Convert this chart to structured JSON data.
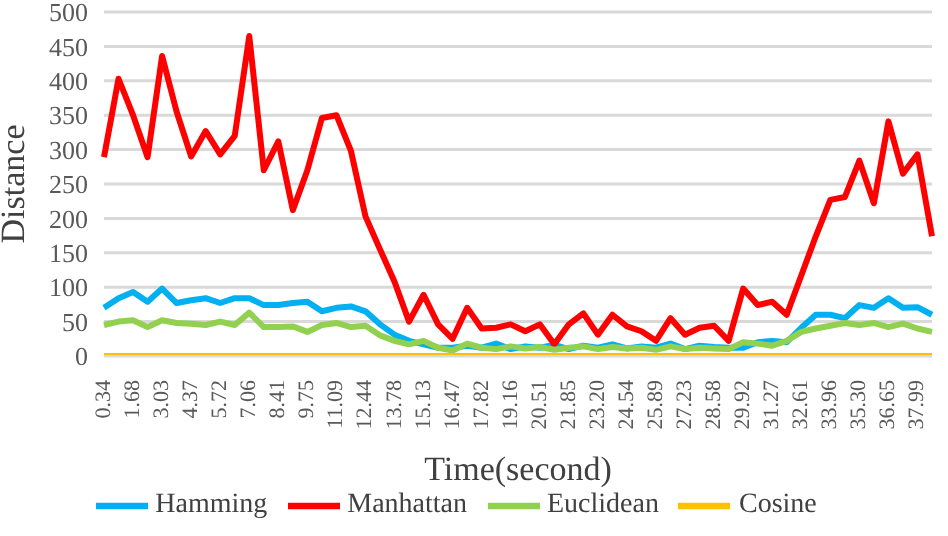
{
  "chart_data": {
    "type": "line",
    "xlabel": "Time(second)",
    "ylabel": "Distance",
    "categories": [
      "0.34",
      null,
      "1.68",
      null,
      "3.03",
      null,
      "4.37",
      null,
      "5.72",
      null,
      "7.06",
      null,
      "8.41",
      null,
      "9.75",
      null,
      "11.09",
      null,
      "12.44",
      null,
      "13.78",
      null,
      "15.13",
      null,
      "16.47",
      null,
      "17.82",
      null,
      "19.16",
      null,
      "20.51",
      null,
      "21.85",
      null,
      "23.20",
      null,
      "24.54",
      null,
      "25.89",
      null,
      "27.23",
      null,
      "28.58",
      null,
      "29.92",
      null,
      "31.27",
      null,
      "32.61",
      null,
      "33.96",
      null,
      "35.30",
      null,
      "36.65",
      null,
      "37.99",
      null
    ],
    "series": [
      {
        "name": "Hamming",
        "color": "#00b0f0",
        "values": [
          70,
          84,
          93,
          79,
          98,
          77,
          81,
          84,
          77,
          84,
          84,
          74,
          74,
          77,
          79,
          65,
          70,
          72,
          65,
          46,
          31,
          22,
          17,
          12,
          12,
          15,
          12,
          18,
          10,
          14,
          12,
          16,
          10,
          15,
          12,
          17,
          11,
          14,
          12,
          18,
          10,
          15,
          13,
          12,
          12,
          20,
          22,
          20,
          41,
          60,
          60,
          55,
          74,
          70,
          84,
          70,
          71,
          60
        ]
      },
      {
        "name": "Manhattan",
        "color": "#ff0000",
        "values": [
          289,
          403,
          350,
          289,
          436,
          355,
          290,
          327,
          293,
          320,
          465,
          270,
          312,
          212,
          270,
          346,
          350,
          298,
          203,
          155,
          108,
          50,
          89,
          46,
          25,
          70,
          40,
          41,
          46,
          36,
          46,
          17,
          46,
          62,
          31,
          60,
          43,
          36,
          22,
          55,
          31,
          41,
          44,
          22,
          98,
          74,
          79,
          60,
          117,
          174,
          227,
          231,
          284,
          222,
          341,
          265,
          293,
          174
        ]
      },
      {
        "name": "Euclidean",
        "color": "#92d050",
        "values": [
          45,
          50,
          52,
          42,
          52,
          48,
          47,
          45,
          50,
          45,
          63,
          42,
          42,
          43,
          35,
          45,
          48,
          42,
          44,
          30,
          22,
          17,
          22,
          12,
          8,
          18,
          12,
          10,
          14,
          11,
          13,
          9,
          12,
          14,
          10,
          13,
          11,
          12,
          9,
          14,
          10,
          12,
          11,
          10,
          20,
          18,
          15,
          22,
          35,
          40,
          44,
          48,
          45,
          48,
          42,
          47,
          40,
          35
        ]
      },
      {
        "name": "Cosine",
        "color": "#ffc000",
        "values": [
          0,
          0,
          0,
          0,
          0,
          0,
          0,
          0,
          0,
          0,
          0,
          0,
          0,
          0,
          0,
          0,
          0,
          0,
          0,
          0,
          0,
          0,
          0,
          0,
          0,
          0,
          0,
          0,
          0,
          0,
          0,
          0,
          0,
          0,
          0,
          0,
          0,
          0,
          0,
          0,
          0,
          0,
          0,
          0,
          0,
          0,
          0,
          0,
          0,
          0,
          0,
          0,
          0,
          0,
          0,
          0,
          0,
          0
        ]
      }
    ],
    "ylim": [
      0,
      500
    ],
    "yticks": [
      0,
      50,
      100,
      150,
      200,
      250,
      300,
      350,
      400,
      450,
      500
    ],
    "grid": "y",
    "legend": "bottom",
    "marker": "none",
    "line_style": "solid"
  }
}
